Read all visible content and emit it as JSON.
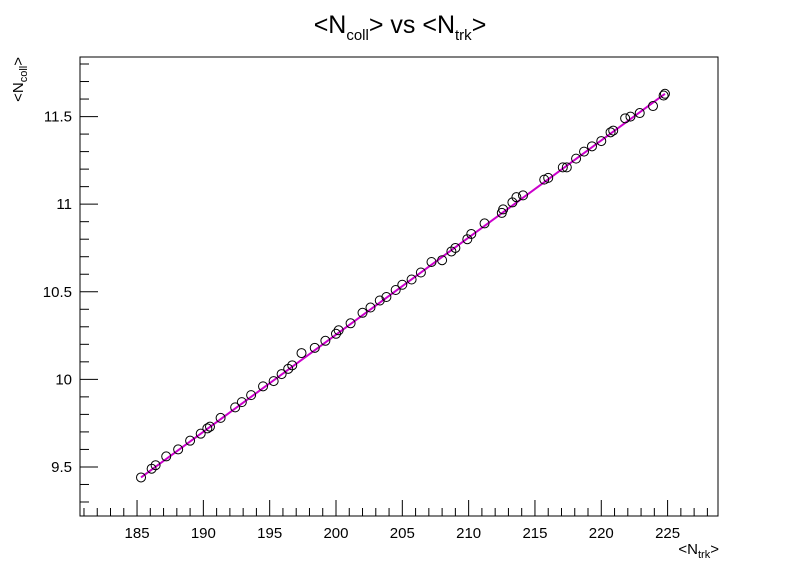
{
  "chart_data": {
    "type": "scatter",
    "title": {
      "main": "<N",
      "sub": "coll",
      "mid": "> vs <N",
      "sub2": "trk",
      "end": ">"
    },
    "xlabel": {
      "main": "<N",
      "sub": "trk",
      "end": ">"
    },
    "ylabel": {
      "main": "<N",
      "sub": "coll",
      "end": ">"
    },
    "xlim": [
      180.7,
      228.8
    ],
    "ylim": [
      9.22,
      11.84
    ],
    "x_ticks": [
      "185",
      "190",
      "195",
      "200",
      "205",
      "210",
      "215",
      "220",
      "225"
    ],
    "y_ticks": [
      "9.5",
      "10",
      "10.5",
      "11",
      "11.5"
    ],
    "grid": false,
    "marker": "open-circle",
    "colors": {
      "markers": "#000000",
      "fit_line": "#cc00cc",
      "frame": "#000000"
    },
    "series": [
      {
        "x": [
          185.3,
          186.1,
          186.4,
          187.2,
          188.1,
          189.0,
          189.8,
          190.3,
          190.5,
          191.3,
          192.4,
          192.9,
          193.6,
          194.5,
          195.3,
          195.9,
          196.4,
          196.7,
          197.4,
          198.4,
          199.2,
          200.0,
          200.2,
          201.1,
          202.0,
          202.6,
          203.3,
          203.8,
          204.5,
          205.0,
          205.7,
          206.4,
          207.2,
          208.0,
          208.7,
          209.0,
          209.9,
          210.2,
          211.2,
          212.5,
          212.6,
          213.3,
          213.6,
          214.1,
          215.7,
          216.0,
          217.1,
          217.4,
          218.1,
          218.7,
          219.3,
          220.0,
          220.7,
          220.9,
          221.8,
          222.2,
          222.9,
          223.9,
          224.7,
          224.8
        ],
        "y": [
          9.44,
          9.49,
          9.51,
          9.56,
          9.6,
          9.65,
          9.69,
          9.72,
          9.73,
          9.78,
          9.84,
          9.87,
          9.91,
          9.96,
          9.99,
          10.03,
          10.06,
          10.08,
          10.15,
          10.18,
          10.22,
          10.26,
          10.28,
          10.32,
          10.38,
          10.41,
          10.45,
          10.47,
          10.51,
          10.54,
          10.57,
          10.61,
          10.67,
          10.68,
          10.73,
          10.75,
          10.8,
          10.83,
          10.89,
          10.95,
          10.97,
          11.01,
          11.04,
          11.05,
          11.14,
          11.15,
          11.21,
          11.21,
          11.26,
          11.3,
          11.33,
          11.36,
          11.41,
          11.42,
          11.49,
          11.5,
          11.52,
          11.56,
          11.62,
          11.63
        ]
      }
    ],
    "fit": {
      "x": [
        185.3,
        224.8
      ],
      "y": [
        9.44,
        11.63
      ]
    }
  }
}
